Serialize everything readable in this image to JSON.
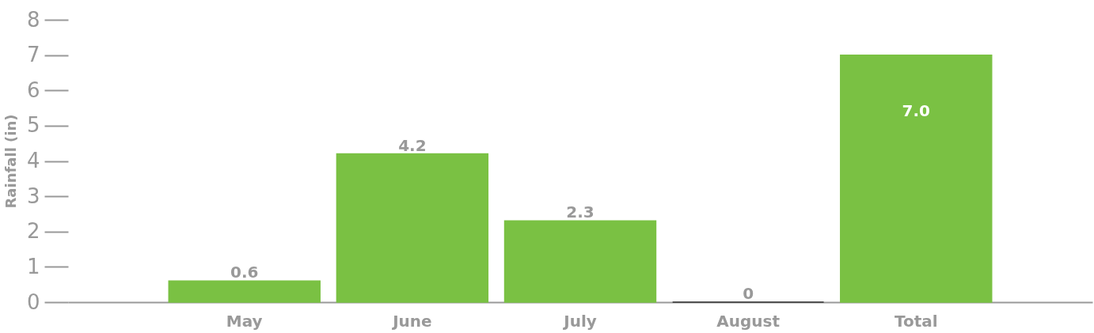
{
  "chart_data": {
    "type": "bar",
    "ylabel": "Rainfall (in)",
    "categories": [
      "May",
      "June",
      "July",
      "August",
      "Total"
    ],
    "values": [
      0.6,
      4.2,
      2.3,
      0,
      7.0
    ],
    "colors": [
      "#7ac143",
      "#7ac143",
      "#7ac143",
      "#333333",
      "#7ac143"
    ],
    "value_labels": [
      "0.6",
      "4.2",
      "2.3",
      "0",
      "7.0"
    ],
    "ylim": [
      0,
      8
    ],
    "yticks": [
      0,
      1,
      2,
      3,
      4,
      5,
      6,
      7,
      8
    ],
    "grid": false
  }
}
